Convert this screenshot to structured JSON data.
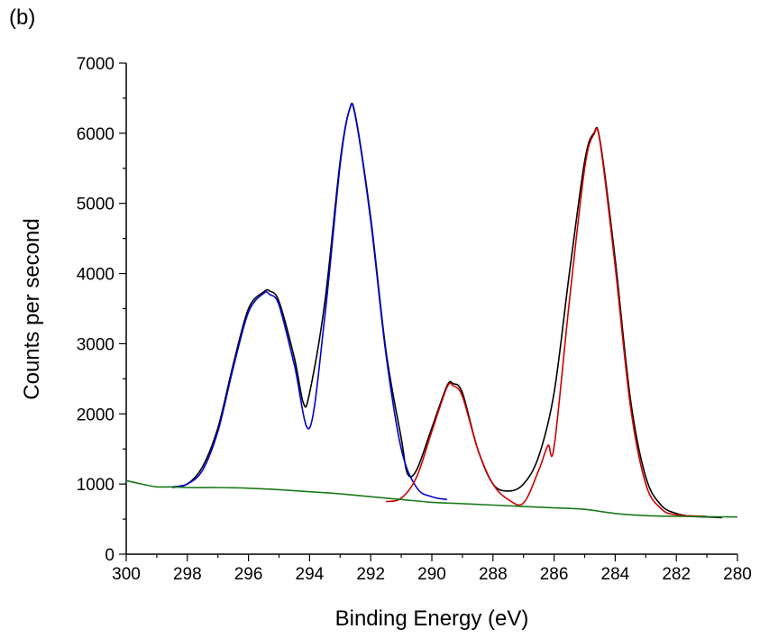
{
  "panel_label": "(b)",
  "chart_data": {
    "type": "line",
    "title": "",
    "xlabel": "Binding Energy (eV)",
    "ylabel": "Counts per second",
    "xlim": [
      300,
      280
    ],
    "ylim": [
      0,
      7000
    ],
    "x_reversed": true,
    "x_ticks": [
      300,
      298,
      296,
      294,
      292,
      290,
      288,
      286,
      284,
      282,
      280
    ],
    "y_ticks": [
      0,
      1000,
      2000,
      3000,
      4000,
      5000,
      6000,
      7000
    ],
    "grid": false,
    "legend": "none",
    "series": [
      {
        "color": "#000000",
        "x": [
          298.5,
          298,
          297.5,
          297,
          296.5,
          296,
          295.5,
          295.3,
          295,
          294.5,
          294.2,
          294,
          293.5,
          293,
          292.7,
          292.5,
          292,
          291.5,
          291,
          290.8,
          290.5,
          290,
          289.5,
          289.3,
          289,
          288.5,
          288,
          287.5,
          287,
          286.5,
          286,
          285.5,
          285,
          284.7,
          284.5,
          284,
          283.5,
          283,
          282.5,
          282,
          281.5,
          281,
          280.5
        ],
        "y": [
          950,
          1000,
          1250,
          1800,
          2700,
          3500,
          3740,
          3750,
          3600,
          2800,
          2150,
          2300,
          3600,
          5600,
          6330,
          6250,
          4800,
          2900,
          1650,
          1150,
          1200,
          1800,
          2400,
          2430,
          2300,
          1500,
          1000,
          900,
          1000,
          1400,
          2300,
          4000,
          5600,
          6000,
          5900,
          4200,
          2200,
          1100,
          700,
          580,
          540,
          530,
          520
        ]
      },
      {
        "color": "#0000cc",
        "x": [
          298.5,
          298,
          297.5,
          297,
          296.5,
          296,
          295.5,
          295.3,
          295,
          294.5,
          294,
          293.5,
          293,
          292.7,
          292.5,
          292,
          291.5,
          291,
          290.5,
          290,
          289.5
        ],
        "y": [
          960,
          1000,
          1200,
          1750,
          2650,
          3450,
          3720,
          3700,
          3550,
          2700,
          1800,
          3400,
          5550,
          6330,
          6230,
          4750,
          2850,
          1500,
          950,
          820,
          780
        ]
      },
      {
        "color": "#cc0000",
        "x": [
          291.5,
          291,
          290.5,
          290,
          289.5,
          289.3,
          289,
          288.5,
          288,
          287.5,
          287,
          286.5,
          286.2,
          286,
          285.5,
          285,
          284.7,
          284.5,
          284,
          283.5,
          283,
          282.5,
          282,
          281
        ],
        "y": [
          750,
          800,
          1100,
          1750,
          2380,
          2400,
          2250,
          1500,
          1000,
          780,
          730,
          1200,
          1550,
          1530,
          3600,
          5500,
          5980,
          5880,
          4100,
          2100,
          1000,
          650,
          560,
          540
        ]
      },
      {
        "color": "#1a7a1a",
        "x": [
          300,
          299.5,
          299,
          298.5,
          298,
          297,
          296,
          295,
          294,
          293,
          292,
          291,
          290,
          289,
          288,
          287,
          286,
          285,
          284,
          283,
          282,
          281,
          280
        ],
        "y": [
          1050,
          1000,
          960,
          960,
          950,
          950,
          940,
          920,
          890,
          860,
          820,
          780,
          740,
          720,
          700,
          680,
          660,
          640,
          580,
          550,
          540,
          535,
          530
        ]
      }
    ]
  }
}
